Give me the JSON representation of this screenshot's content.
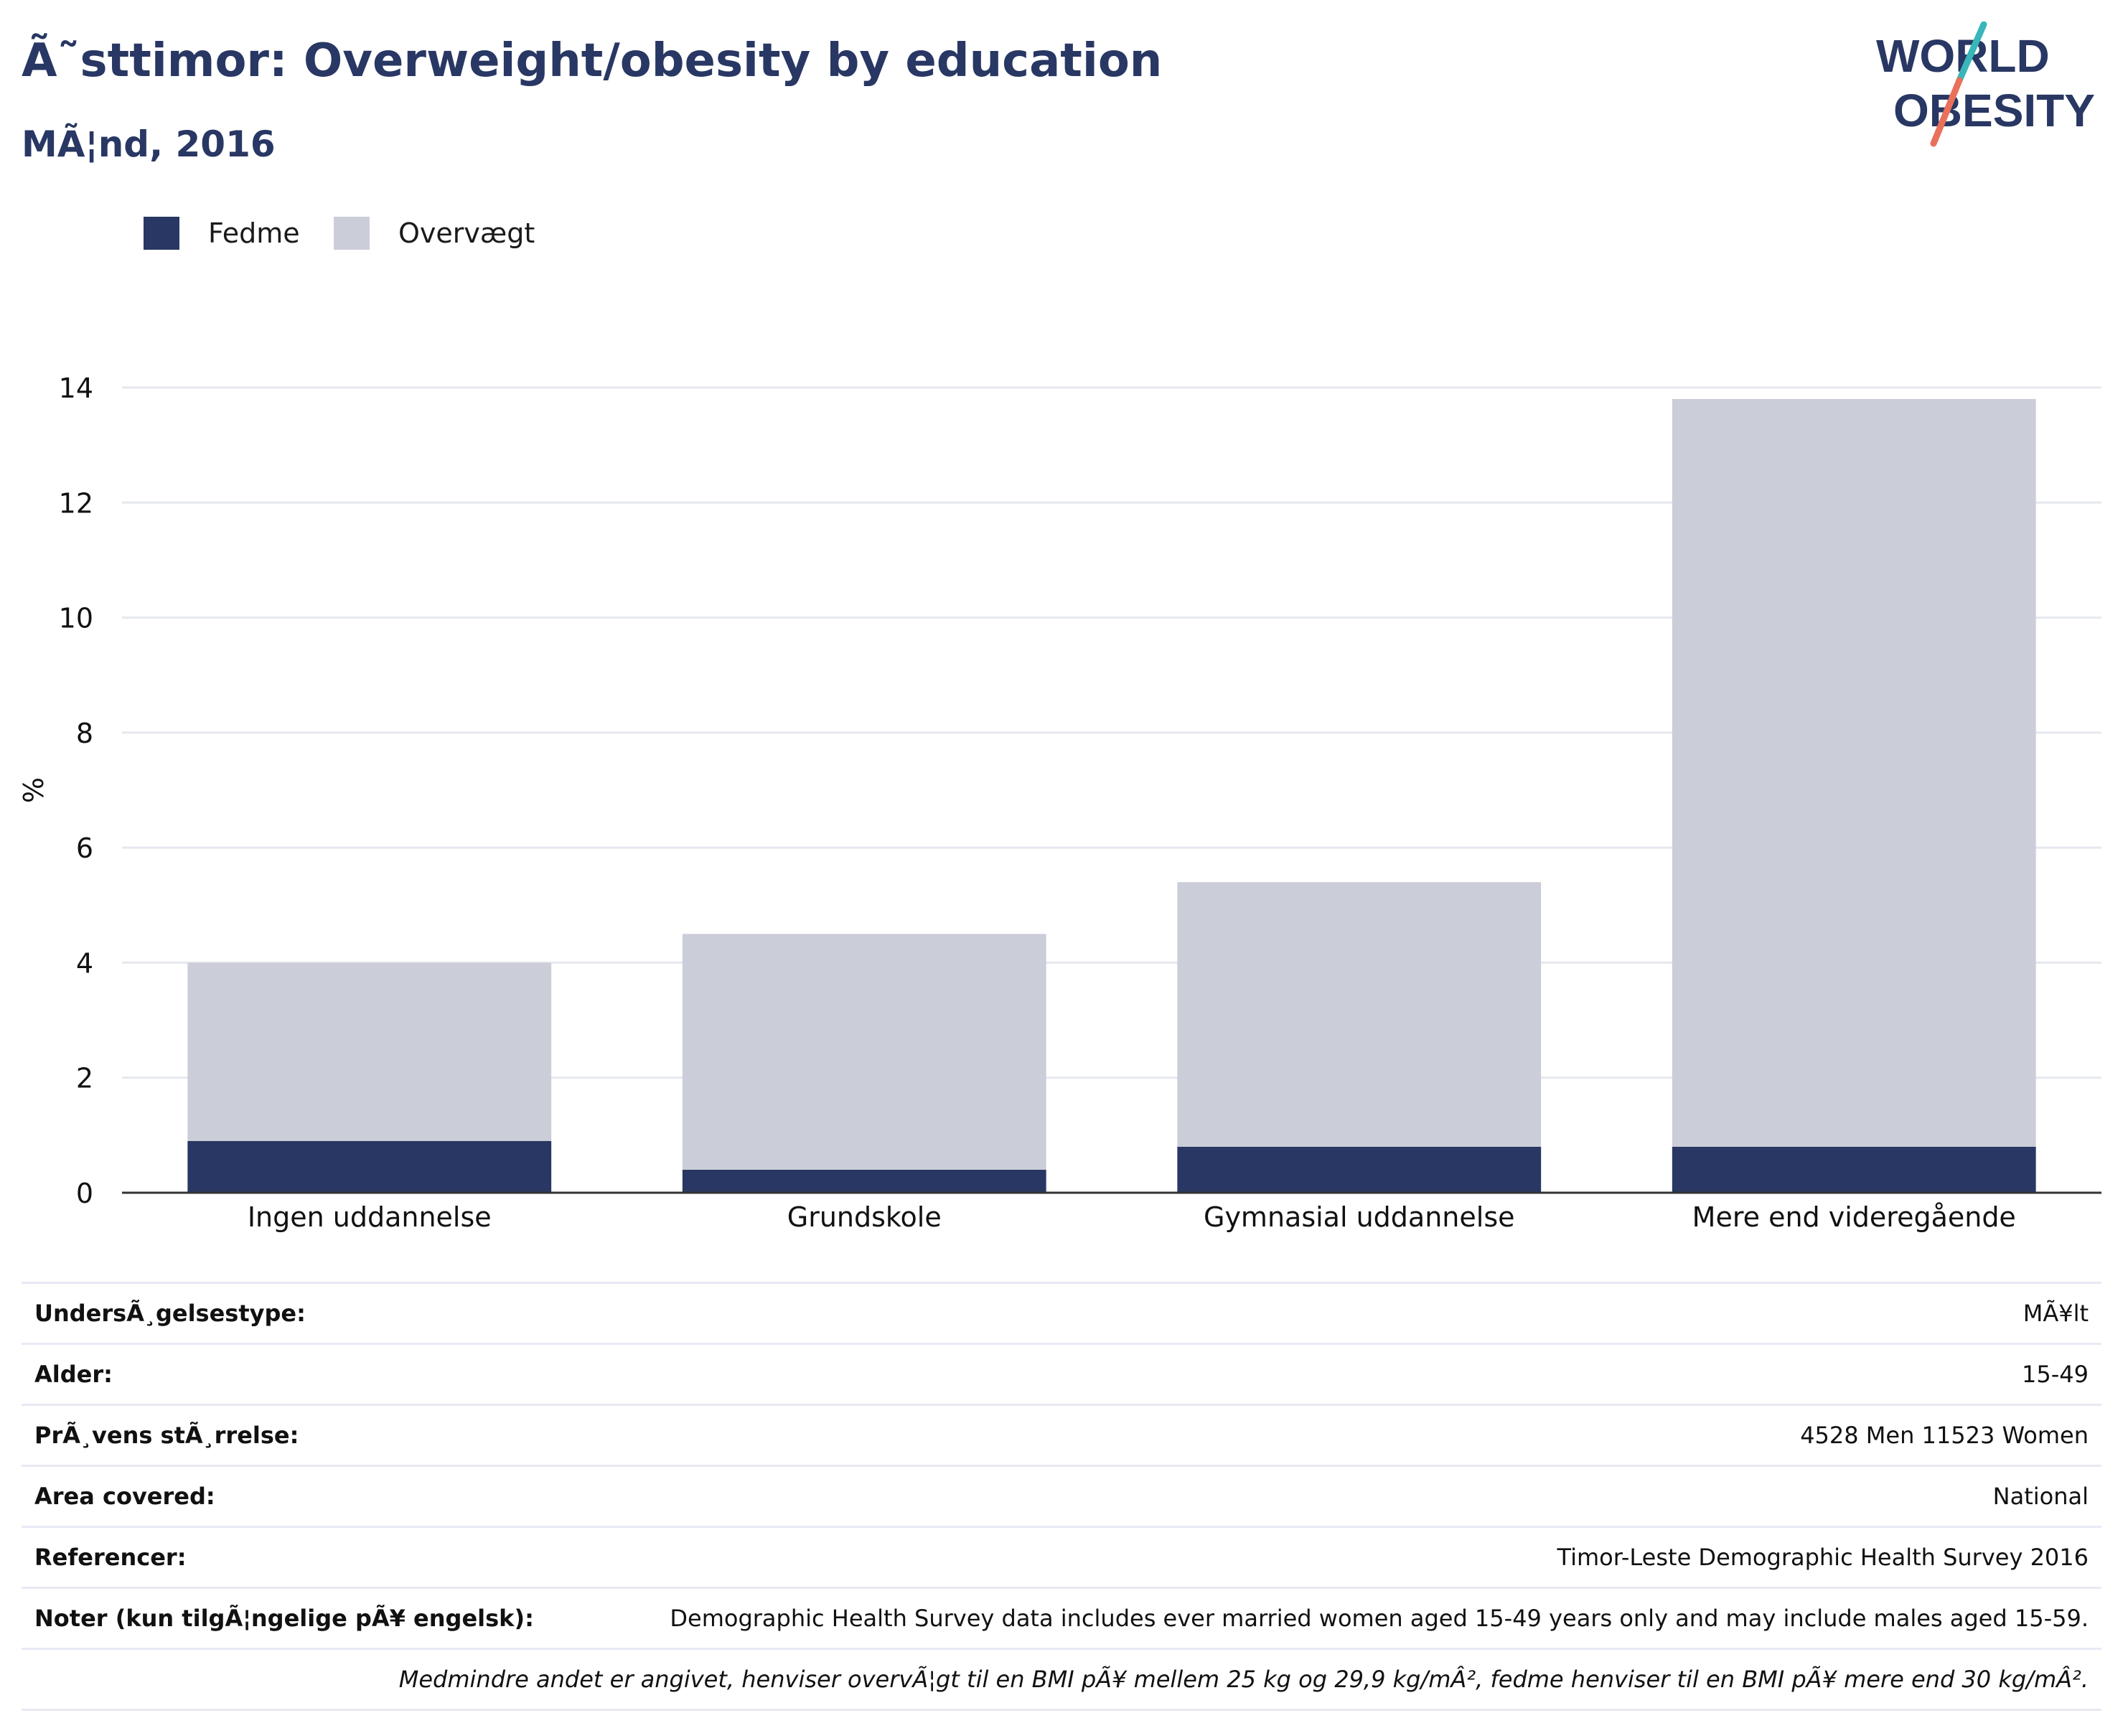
{
  "header": {
    "title": "Ã˜sttimor: Overweight/obesity by education",
    "subtitle": "MÃ¦nd, 2016",
    "logo_line1": "WORLD",
    "logo_line2": "OBESITY"
  },
  "legend": [
    {
      "label": "Fedme",
      "color": "#283763"
    },
    {
      "label": "Overvægt",
      "color": "#cbcdd8"
    }
  ],
  "chart_data": {
    "type": "bar",
    "stacked": true,
    "categories": [
      "Ingen uddannelse",
      "Grundskole",
      "Gymnasial uddannelse",
      "Mere end videregående"
    ],
    "series": [
      {
        "name": "Fedme",
        "color": "#283763",
        "values": [
          0.9,
          0.4,
          0.8,
          0.8
        ]
      },
      {
        "name": "Overvægt",
        "color": "#cbcdd8",
        "values": [
          3.1,
          4.1,
          4.6,
          13.0
        ]
      }
    ],
    "ylabel": "%",
    "ylim": [
      0,
      14
    ],
    "yticks": [
      0,
      2,
      4,
      6,
      8,
      10,
      12,
      14
    ],
    "grid": true,
    "legend_position": "top-left"
  },
  "info_table": [
    {
      "key": "UndersÃ¸gelsestype:",
      "value": "MÃ¥lt"
    },
    {
      "key": "Alder:",
      "value": "15-49"
    },
    {
      "key": "PrÃ¸vens stÃ¸rrelse:",
      "value": "4528 Men 11523 Women"
    },
    {
      "key": "Area covered:",
      "value": "National"
    },
    {
      "key": "Referencer:",
      "value": "Timor-Leste Demographic Health Survey 2016"
    },
    {
      "key": "Noter (kun tilgÃ¦ngelige pÃ¥ engelsk):",
      "value": "Demographic Health Survey data includes ever married women aged 15-49 years only and may include males aged 15-59."
    }
  ],
  "footnote": "Medmindre andet er angivet, henviser overvÃ¦gt til en BMI pÃ¥ mellem 25 kg og 29,9 kg/mÂ², fedme henviser til en BMI pÃ¥ mere end 30 kg/mÂ²."
}
